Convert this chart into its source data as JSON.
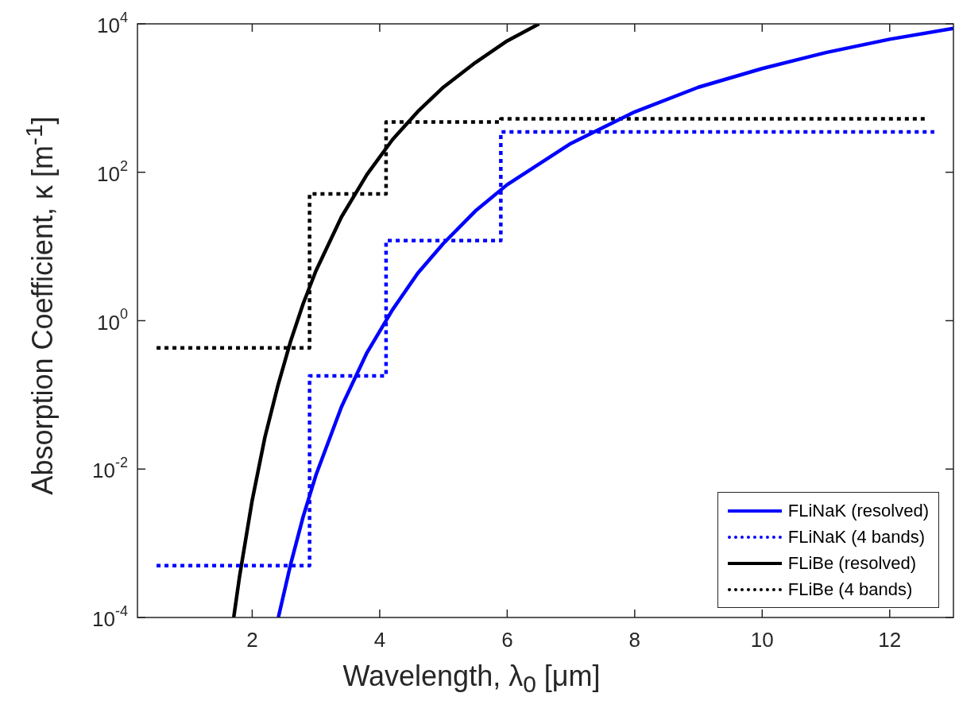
{
  "chart_data": {
    "type": "line",
    "xlabel": "Wavelength, λ$_{0}$ [μm]",
    "ylabel": "Absorption Coefficient, κ [m$^{-1}$]",
    "log": "y",
    "grid": false,
    "marker": "none",
    "legend": "bottom right",
    "xlim": [
      0.2,
      13
    ],
    "xticks": [
      2,
      4,
      6,
      8,
      10,
      12
    ],
    "ylim": [
      0.0001,
      10000
    ],
    "yticks": [
      {
        "value": 0.0001,
        "label": "10$^{-4}$"
      },
      {
        "value": 0.01,
        "label": "10$^{-2}$"
      },
      {
        "value": 1,
        "label": "10$^{0}$"
      },
      {
        "value": 100,
        "label": "10$^{2}$"
      },
      {
        "value": 10000,
        "label": "10$^{4}$"
      }
    ],
    "series": [
      {
        "name": "FLiNaK (resolved)",
        "type": "line",
        "line_style": "solid",
        "color": "#0000ff",
        "x": [
          2.41,
          2.6,
          2.8,
          3.0,
          3.4,
          3.8,
          4.2,
          4.6,
          5.0,
          5.5,
          6.0,
          7,
          8,
          9,
          10,
          11,
          12,
          13
        ],
        "values": [
          0.0001,
          0.00051,
          0.0023,
          0.0083,
          0.069,
          0.37,
          1.4,
          4.4,
          11,
          30,
          68,
          245,
          650,
          1400,
          2500,
          4100,
          6200,
          8700
        ]
      },
      {
        "name": "FLiNaK (4 bands)",
        "type": "step",
        "line_style": "dotted",
        "color": "#0000ff",
        "x": [
          0.5,
          2.9,
          4.1,
          5.9,
          12.7
        ],
        "values": [
          0.0005,
          0.18,
          12,
          350,
          350
        ]
      },
      {
        "name": "FLiBe (resolved)",
        "type": "line",
        "line_style": "solid",
        "color": "#000000",
        "x": [
          1.71,
          1.8,
          2.0,
          2.2,
          2.4,
          2.6,
          2.8,
          3.0,
          3.4,
          3.8,
          4.2,
          4.6,
          5.0,
          5.5,
          6.0,
          6.5
        ],
        "values": [
          0.0001,
          0.00035,
          0.0038,
          0.027,
          0.13,
          0.52,
          1.7,
          4.7,
          25,
          93,
          275,
          660,
          1400,
          3000,
          5900,
          10000
        ]
      },
      {
        "name": "FLiBe (4 bands)",
        "type": "step",
        "line_style": "dotted",
        "color": "#000000",
        "x": [
          0.5,
          2.9,
          4.1,
          5.9,
          12.6
        ],
        "values": [
          0.43,
          51,
          475,
          525,
          525
        ]
      }
    ]
  }
}
